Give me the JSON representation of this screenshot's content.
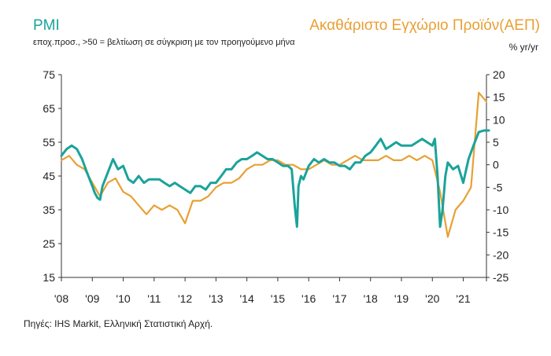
{
  "header": {
    "left_title": "PMI",
    "subtitle": "εποχ.προσ., >50 = βελτίωση σε σύγκριση με τον προηγούμενο μήνα",
    "right_title": "Ακαθάριστο Εγχώριο Προϊόν(ΑΕΠ)",
    "right_unit": "% yr/yr"
  },
  "source": "Πηγές: IHS Markit, Ελληνική Στατιστική Αρχή.",
  "chart_data": {
    "type": "line",
    "x_tick_labels": [
      "'08",
      "'09",
      "'10",
      "'11",
      "'12",
      "'13",
      "'14",
      "'15",
      "'16",
      "'17",
      "'18",
      "'19",
      "'20",
      "'21"
    ],
    "left_axis": {
      "ylim": [
        15,
        75
      ],
      "ticks": [
        15,
        25,
        35,
        45,
        55,
        65,
        75
      ]
    },
    "right_axis": {
      "ylim": [
        -25,
        20
      ],
      "ticks": [
        -25,
        -20,
        -15,
        -10,
        -5,
        0,
        5,
        10,
        15,
        20
      ]
    },
    "grid": false,
    "colors": {
      "pmi": "#1aa39a",
      "gdp": "#e8a033"
    },
    "series": [
      {
        "key": "pmi",
        "axis": "left",
        "x": [
          2008.0,
          2008.17,
          2008.33,
          2008.5,
          2008.67,
          2008.83,
          2009.0,
          2009.08,
          2009.17,
          2009.25,
          2009.33,
          2009.5,
          2009.67,
          2009.83,
          2010.0,
          2010.17,
          2010.33,
          2010.5,
          2010.67,
          2010.83,
          2011.0,
          2011.17,
          2011.33,
          2011.5,
          2011.67,
          2011.83,
          2012.0,
          2012.17,
          2012.33,
          2012.5,
          2012.67,
          2012.83,
          2013.0,
          2013.17,
          2013.33,
          2013.5,
          2013.67,
          2013.83,
          2014.0,
          2014.17,
          2014.33,
          2014.5,
          2014.67,
          2014.83,
          2015.0,
          2015.17,
          2015.33,
          2015.45,
          2015.55,
          2015.62,
          2015.67,
          2015.75,
          2015.83,
          2016.0,
          2016.17,
          2016.33,
          2016.5,
          2016.67,
          2016.83,
          2017.0,
          2017.17,
          2017.33,
          2017.5,
          2017.67,
          2017.83,
          2018.0,
          2018.17,
          2018.33,
          2018.5,
          2018.67,
          2018.83,
          2019.0,
          2019.17,
          2019.33,
          2019.5,
          2019.67,
          2019.83,
          2020.0,
          2020.08,
          2020.17,
          2020.25,
          2020.33,
          2020.42,
          2020.5,
          2020.67,
          2020.83,
          2021.0,
          2021.17,
          2021.33,
          2021.5,
          2021.67,
          2021.83
        ],
        "values": [
          51,
          53,
          54,
          53,
          50,
          46,
          42,
          40,
          38.5,
          38,
          42,
          46,
          50,
          47,
          48,
          44,
          43,
          45,
          43,
          44,
          44,
          44,
          43,
          42,
          43,
          42,
          41,
          40,
          42,
          42,
          41,
          43,
          43,
          45,
          47,
          47,
          49,
          50,
          50,
          51,
          52,
          51,
          50,
          50,
          49,
          48,
          48,
          47,
          36,
          30,
          42,
          45,
          44,
          48,
          50,
          49,
          50,
          49,
          49,
          48,
          48,
          47,
          49,
          49,
          51,
          52,
          54,
          56,
          53,
          54,
          55,
          54,
          54,
          54,
          55,
          56,
          55,
          54,
          56,
          45,
          30,
          35,
          45,
          49,
          47,
          48,
          43,
          50,
          54,
          58,
          58.5,
          58.5
        ]
      },
      {
        "key": "gdp",
        "axis": "right",
        "x": [
          2008.0,
          2008.25,
          2008.5,
          2008.75,
          2009.0,
          2009.25,
          2009.5,
          2009.75,
          2010.0,
          2010.25,
          2010.5,
          2010.75,
          2011.0,
          2011.25,
          2011.5,
          2011.75,
          2012.0,
          2012.25,
          2012.5,
          2012.75,
          2013.0,
          2013.25,
          2013.5,
          2013.75,
          2014.0,
          2014.25,
          2014.5,
          2014.75,
          2015.0,
          2015.25,
          2015.5,
          2015.75,
          2016.0,
          2016.25,
          2016.5,
          2016.75,
          2017.0,
          2017.25,
          2017.5,
          2017.75,
          2018.0,
          2018.25,
          2018.5,
          2018.75,
          2019.0,
          2019.25,
          2019.5,
          2019.75,
          2020.0,
          2020.25,
          2020.5,
          2020.75,
          2021.0,
          2021.25,
          2021.5,
          2021.75
        ],
        "values": [
          1,
          2,
          0,
          -1,
          -4,
          -7,
          -4,
          -3,
          -6,
          -7,
          -9,
          -11,
          -9,
          -10,
          -9,
          -10,
          -13,
          -8,
          -8,
          -7,
          -5,
          -4,
          -4,
          -3,
          -1,
          0,
          0,
          1,
          1,
          0,
          0,
          -1,
          -1,
          0,
          1,
          0,
          0,
          1,
          2,
          1,
          1,
          1,
          2,
          1,
          1,
          2,
          1,
          2,
          1,
          -6,
          -16,
          -10,
          -8,
          -5,
          16,
          14
        ]
      }
    ]
  }
}
